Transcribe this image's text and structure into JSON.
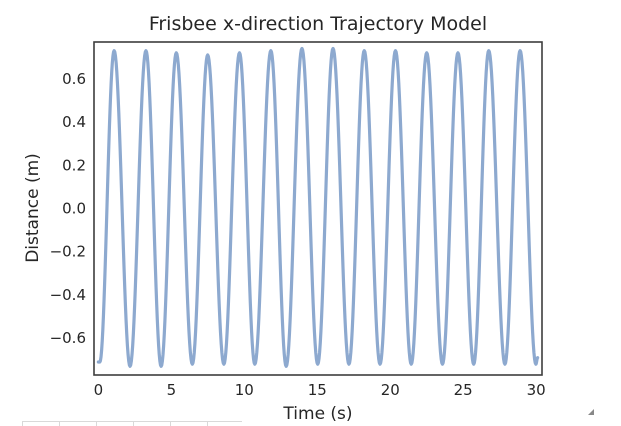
{
  "chart_data": {
    "type": "line",
    "title": "Frisbee x-direction Trajectory Model",
    "xlabel": "Time (s)",
    "ylabel": "Distance (m)",
    "xlim": [
      -0.3,
      30.4
    ],
    "ylim": [
      -0.77,
      0.77
    ],
    "xticks": [
      0,
      5,
      10,
      15,
      20,
      25,
      30
    ],
    "xtick_labels": [
      "0",
      "5",
      "10",
      "15",
      "20",
      "25",
      "30"
    ],
    "yticks": [
      -0.6,
      -0.4,
      -0.2,
      0.0,
      0.2,
      0.4,
      0.6
    ],
    "ytick_labels": [
      "−0.6",
      "−0.4",
      "−0.2",
      "0.0",
      "0.2",
      "0.4",
      "0.6"
    ],
    "grid": false,
    "line_color": "#8da9cf",
    "series": [
      {
        "peaks": [
          {
            "x": 1.08,
            "y": 0.73
          },
          {
            "x": 3.26,
            "y": 0.73
          },
          {
            "x": 5.34,
            "y": 0.72
          },
          {
            "x": 7.49,
            "y": 0.71
          },
          {
            "x": 9.67,
            "y": 0.72
          },
          {
            "x": 11.82,
            "y": 0.73
          },
          {
            "x": 13.95,
            "y": 0.74
          },
          {
            "x": 16.08,
            "y": 0.74
          },
          {
            "x": 18.22,
            "y": 0.73
          },
          {
            "x": 20.36,
            "y": 0.73
          },
          {
            "x": 22.5,
            "y": 0.72
          },
          {
            "x": 24.64,
            "y": 0.72
          },
          {
            "x": 26.75,
            "y": 0.73
          },
          {
            "x": 28.9,
            "y": 0.73
          }
        ],
        "troughs": [
          {
            "x": 0.1,
            "y": -0.71
          },
          {
            "x": 2.17,
            "y": -0.73
          },
          {
            "x": 4.3,
            "y": -0.73
          },
          {
            "x": 6.44,
            "y": -0.72
          },
          {
            "x": 8.6,
            "y": -0.72
          },
          {
            "x": 10.72,
            "y": -0.72
          },
          {
            "x": 12.87,
            "y": -0.73
          },
          {
            "x": 15.03,
            "y": -0.72
          },
          {
            "x": 17.17,
            "y": -0.72
          },
          {
            "x": 19.3,
            "y": -0.72
          },
          {
            "x": 21.44,
            "y": -0.72
          },
          {
            "x": 23.58,
            "y": -0.72
          },
          {
            "x": 25.72,
            "y": -0.72
          },
          {
            "x": 27.86,
            "y": -0.72
          },
          {
            "x": 29.98,
            "y": -0.72
          }
        ],
        "start": {
          "x": 0.0,
          "y": -0.71
        },
        "end": {
          "x": 30.1,
          "y": -0.69
        }
      }
    ]
  }
}
